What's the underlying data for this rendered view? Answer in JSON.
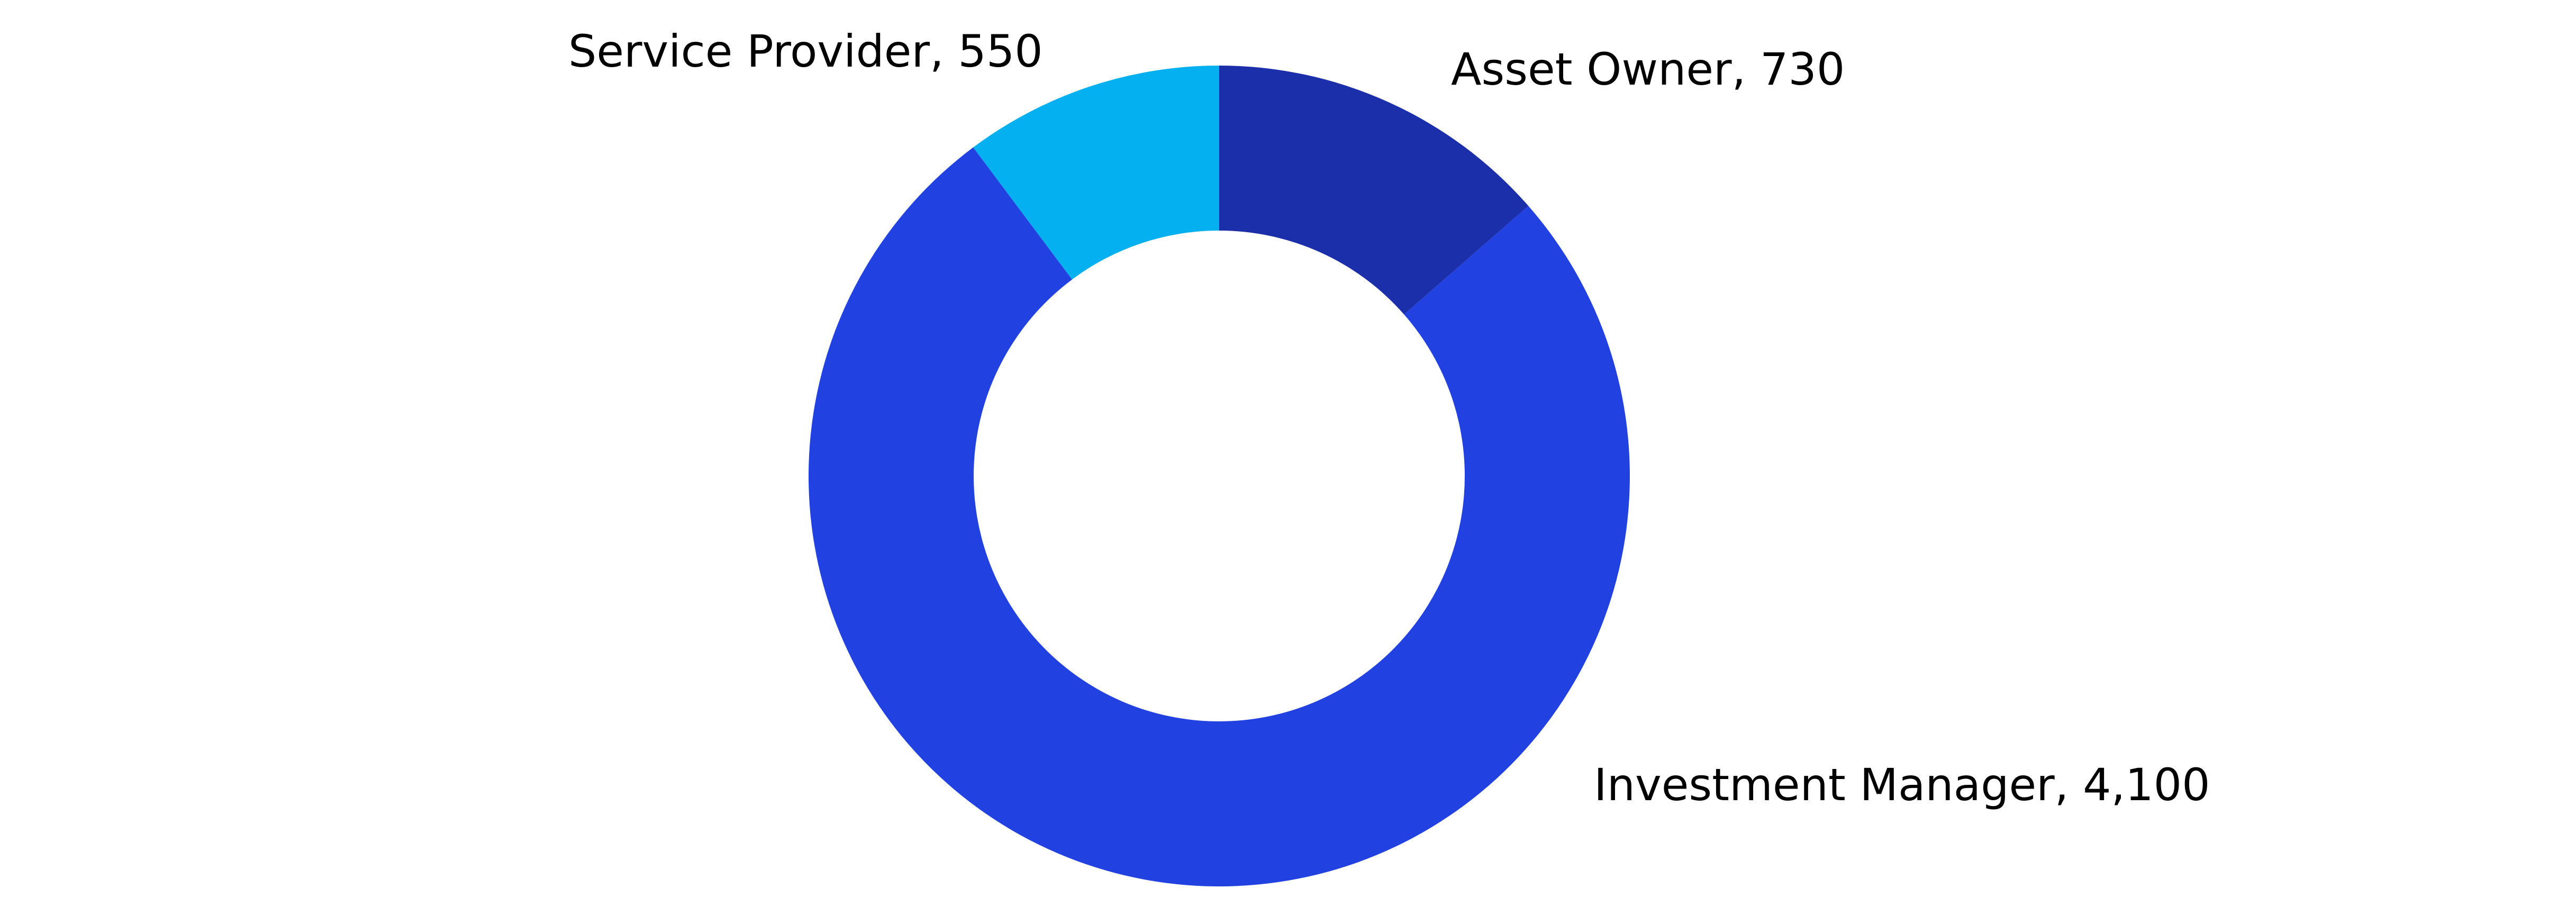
{
  "chart_data": {
    "type": "donut",
    "values": [
      730,
      4100,
      550
    ],
    "value_labels": [
      "Asset Owner, 730",
      "Investment Manager, 4,100",
      "Service Provider, 550"
    ],
    "colors": [
      "#1b2fab",
      "#2142e0",
      "#05b0f0"
    ]
  }
}
